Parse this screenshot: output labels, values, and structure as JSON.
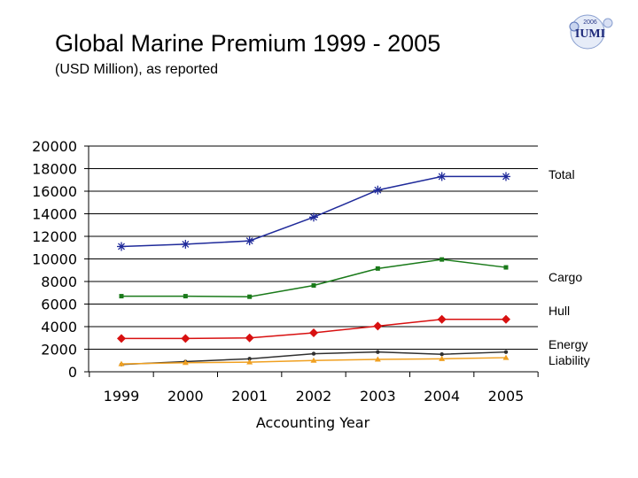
{
  "title": "Global Marine Premium 1999 - 2005",
  "subtitle": "(USD Million), as reported",
  "logo": {
    "year": "2006",
    "text": "IUMI"
  },
  "legend": {
    "total": "Total",
    "cargo": "Cargo",
    "hull": "Hull",
    "energy_liability": "Energy\nLiability"
  },
  "chart_data": {
    "type": "line",
    "x": [
      "1999",
      "2000",
      "2001",
      "2002",
      "2003",
      "2004",
      "2005"
    ],
    "xlabel": "Accounting Year",
    "ylabel": "",
    "ylim": [
      0,
      20000
    ],
    "yticks": [
      0,
      2000,
      4000,
      6000,
      8000,
      10000,
      12000,
      14000,
      16000,
      18000,
      20000
    ],
    "grid": true,
    "legend_position": "right",
    "series": [
      {
        "name": "Total",
        "color": "#1f2a9a",
        "marker": "asterisk",
        "values": [
          11100,
          11300,
          11600,
          13700,
          16100,
          17300,
          17300
        ]
      },
      {
        "name": "Cargo",
        "color": "#1a7a1a",
        "marker": "square",
        "values": [
          6700,
          6700,
          6650,
          7650,
          9150,
          9950,
          9250
        ]
      },
      {
        "name": "Hull",
        "color": "#d81010",
        "marker": "diamond",
        "values": [
          2950,
          2950,
          3000,
          3450,
          4050,
          4650,
          4650
        ]
      },
      {
        "name": "Energy",
        "color": "#303030",
        "marker": "circle",
        "values": [
          650,
          900,
          1150,
          1600,
          1750,
          1550,
          1750
        ]
      },
      {
        "name": "Liability",
        "color": "#f0a020",
        "marker": "triangle",
        "values": [
          700,
          800,
          850,
          1000,
          1100,
          1150,
          1250
        ]
      }
    ]
  }
}
